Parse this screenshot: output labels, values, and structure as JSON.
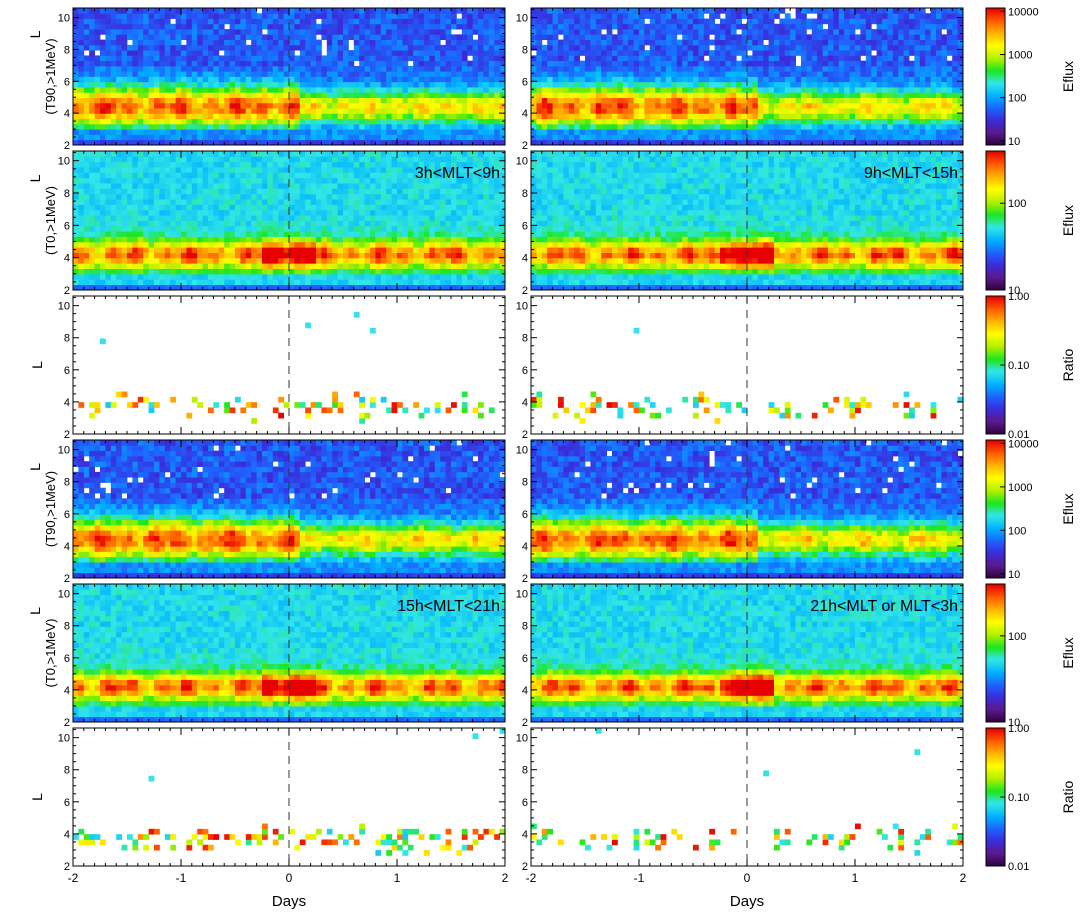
{
  "chart_data": {
    "type": "heatmap",
    "description_free": true,
    "x_axis": {
      "label": "Days",
      "range": [
        -2,
        2
      ],
      "ticks": [
        -2,
        -1,
        0,
        1,
        2
      ],
      "tick_labels": [
        "-2",
        "-1",
        "0",
        "1",
        "2"
      ],
      "epoch_marker": 0
    },
    "y_axis": {
      "range": [
        2,
        10.6
      ],
      "ticks": [
        2,
        4,
        6,
        8,
        10
      ],
      "tick_labels": [
        "2",
        "4",
        "6",
        "8",
        "10"
      ]
    },
    "columns": [
      {
        "title": "3h<MLT<9h",
        "title_row": 1
      },
      {
        "title": "9h<MLT<15h",
        "title_row": 1
      },
      {
        "title": "15h<MLT<21h",
        "title_row": 4
      },
      {
        "title": "21h<MLT or MLT<3h",
        "title_row": 4
      }
    ],
    "panels": [
      {
        "ylabel_main": "L",
        "ylabel_sub": "(T90,>1MeV)",
        "cbar": "c1",
        "kind": "eflux_t90",
        "panels_in_row": 2,
        "shows_xlabels": false
      },
      {
        "ylabel_main": "L",
        "ylabel_sub": "(T0,>1MeV)",
        "cbar": "c2",
        "kind": "eflux_t0",
        "panels_in_row": 2,
        "shows_xlabels": false
      },
      {
        "ylabel_main": "L",
        "ylabel_sub": "",
        "cbar": "c3",
        "kind": "ratio",
        "panels_in_row": 2,
        "shows_xlabels": false
      },
      {
        "ylabel_main": "L",
        "ylabel_sub": "(T90,>1MeV)",
        "cbar": "c1",
        "kind": "eflux_t90",
        "panels_in_row": 2,
        "shows_xlabels": false
      },
      {
        "ylabel_main": "L",
        "ylabel_sub": "(T0,>1MeV)",
        "cbar": "c2",
        "kind": "eflux_t0",
        "panels_in_row": 2,
        "shows_xlabels": false
      },
      {
        "ylabel_main": "L",
        "ylabel_sub": "",
        "cbar": "c3",
        "kind": "ratio",
        "panels_in_row": 2,
        "shows_xlabels": true
      }
    ],
    "colorbars": {
      "c1": {
        "label": "Eflux",
        "scale": "log",
        "range": [
          8,
          12000
        ],
        "tick_values": [
          10,
          100,
          1000,
          10000
        ],
        "tick_labels": [
          "10",
          "100",
          "1000",
          "10000"
        ]
      },
      "c2": {
        "label": "Eflux",
        "scale": "log",
        "range": [
          10,
          400
        ],
        "tick_values": [
          10,
          100
        ],
        "tick_labels": [
          "10",
          "100"
        ]
      },
      "c3": {
        "label": "Ratio",
        "scale": "log",
        "range": [
          0.01,
          1.0
        ],
        "tick_values": [
          0.01,
          0.1,
          1.0
        ],
        "tick_labels": [
          "0.01",
          "0.10",
          "1.00"
        ]
      }
    },
    "colormap": [
      "#2a0040",
      "#5a1a8a",
      "#3b2bd8",
      "#1e64ff",
      "#00b4ff",
      "#33e6e6",
      "#1ee61e",
      "#b4f000",
      "#ffff00",
      "#ffb400",
      "#ff5a00",
      "#e60000"
    ]
  }
}
